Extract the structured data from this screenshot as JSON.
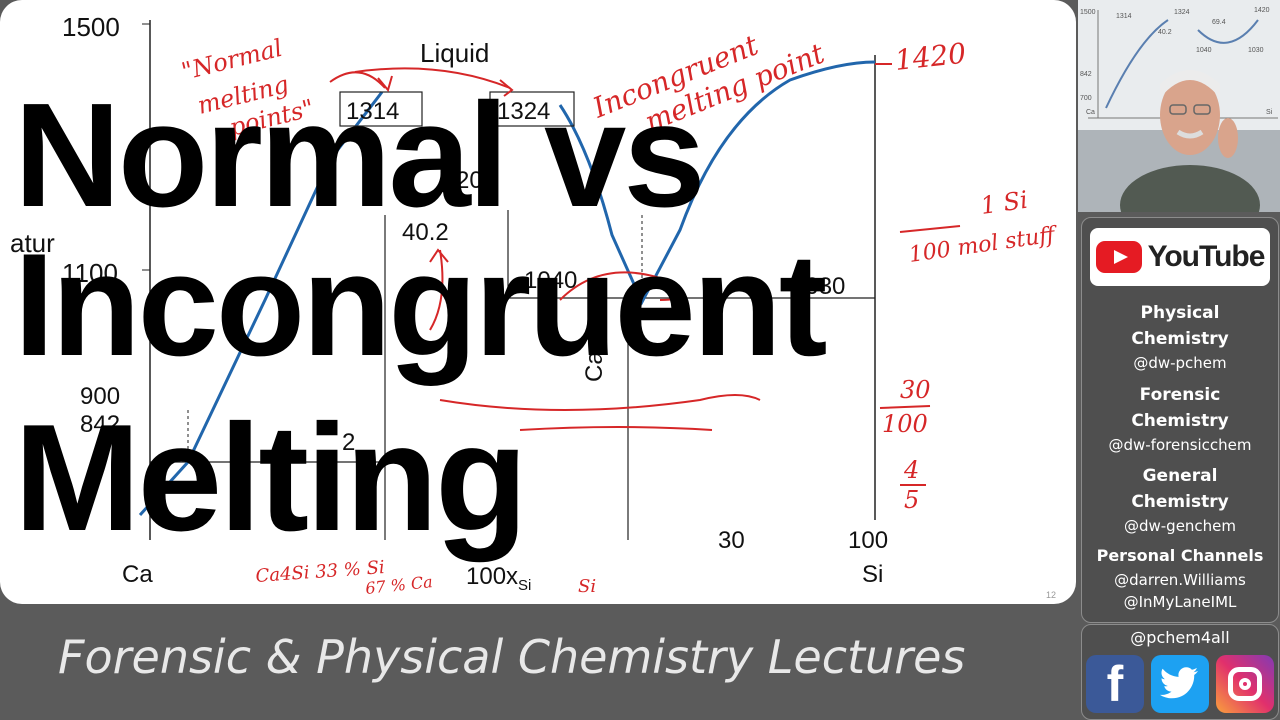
{
  "title": {
    "line1": "Normal vs",
    "line2": "Incongruent",
    "line3": "Melting"
  },
  "footer": "Forensic & Physical Chemistry Lectures",
  "diagram": {
    "region_label": "Liquid",
    "y_tick_top": "1500",
    "y_tick_mid": "1100",
    "y_tick_low1": "900",
    "y_tick_low2": "842",
    "y_axis_partial": "atur",
    "x_left": "Ca",
    "x_right": "Si",
    "x_tick_100": "100",
    "x_tick_30": "30",
    "x_tick_20": "20",
    "x_axis_label": "100x",
    "x_axis_sub": "Si",
    "box_1314": "1314",
    "box_1324": "1324",
    "val_40_2": "40.2",
    "val_1040": "1040",
    "val_1030": "1030",
    "partial_20": "20",
    "partial_2": "2",
    "partial_ca": "Ca",
    "page_number": "12"
  },
  "annotations": {
    "normal_melting_1": "\"Normal",
    "normal_melting_2": "melting",
    "normal_melting_3": "points\"",
    "incongruent_1": "Incongruent",
    "incongruent_2": "melting point",
    "note_1420": "1420",
    "note_si": "1 Si",
    "note_stuff": "100 mol stuff",
    "note_frac_top": "30",
    "note_frac_bot": "100",
    "note_frac2_top": "4",
    "note_frac2_bot": "5",
    "note_ca4si": "Ca4Si  33 % Si",
    "note_67": "67 % Ca",
    "note_si_small": "Si"
  },
  "side_panel": {
    "youtube": "YouTube",
    "channels": [
      {
        "title1": "Physical",
        "title2": "Chemistry",
        "handle": "@dw-pchem"
      },
      {
        "title1": "Forensic",
        "title2": "Chemistry",
        "handle": "@dw-forensicchem"
      },
      {
        "title1": "General",
        "title2": "Chemistry",
        "handle": "@dw-genchem"
      }
    ],
    "personal_title": "Personal Channels",
    "personal_handles": [
      "@darren.Williams",
      "@InMyLaneIML"
    ]
  },
  "social": {
    "handle": "@pchem4all",
    "facebook_glyph": "f",
    "twitter_glyph": "t"
  },
  "webcam_board": {
    "labels": [
      "1500",
      "1314",
      "1324",
      "1420",
      "1040",
      "1030",
      "842",
      "700",
      "Ca",
      "Si",
      "40.2",
      "69.4"
    ]
  },
  "colors": {
    "curve": "#2166ac",
    "ink": "#d62728",
    "background": "#5b5b5b",
    "panel": "#4f4f4f"
  }
}
